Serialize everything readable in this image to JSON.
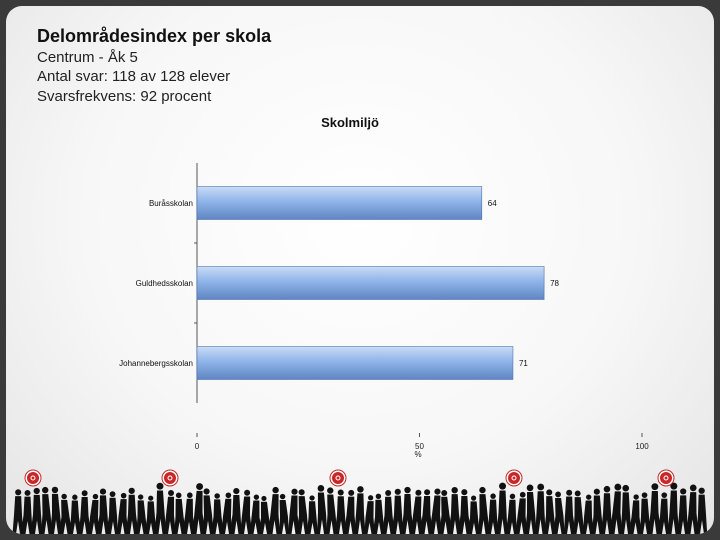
{
  "header": {
    "title": "Delområdesindex per skola",
    "line1": "Centrum - Åk 5",
    "line2": "Antal svar: 118 av 128 elever",
    "line3": "Svarsfrekvens: 92 procent"
  },
  "colors": {
    "bar": "#8fb4e8",
    "bar_dark": "#5f86c4"
  },
  "chart_data": {
    "type": "bar",
    "orientation": "horizontal",
    "title": "Skolmiljö",
    "xlabel": "%",
    "categories": [
      "Buråsskolan",
      "Guldhedsskolan",
      "Johannebergsskolan"
    ],
    "values": [
      64,
      78,
      71
    ],
    "xlim": [
      0,
      100
    ],
    "xticks": [
      0,
      50,
      100
    ],
    "data_labels": true,
    "legend": "none",
    "grid": false
  },
  "footer": {
    "decoration": "silhouette-crowd"
  }
}
